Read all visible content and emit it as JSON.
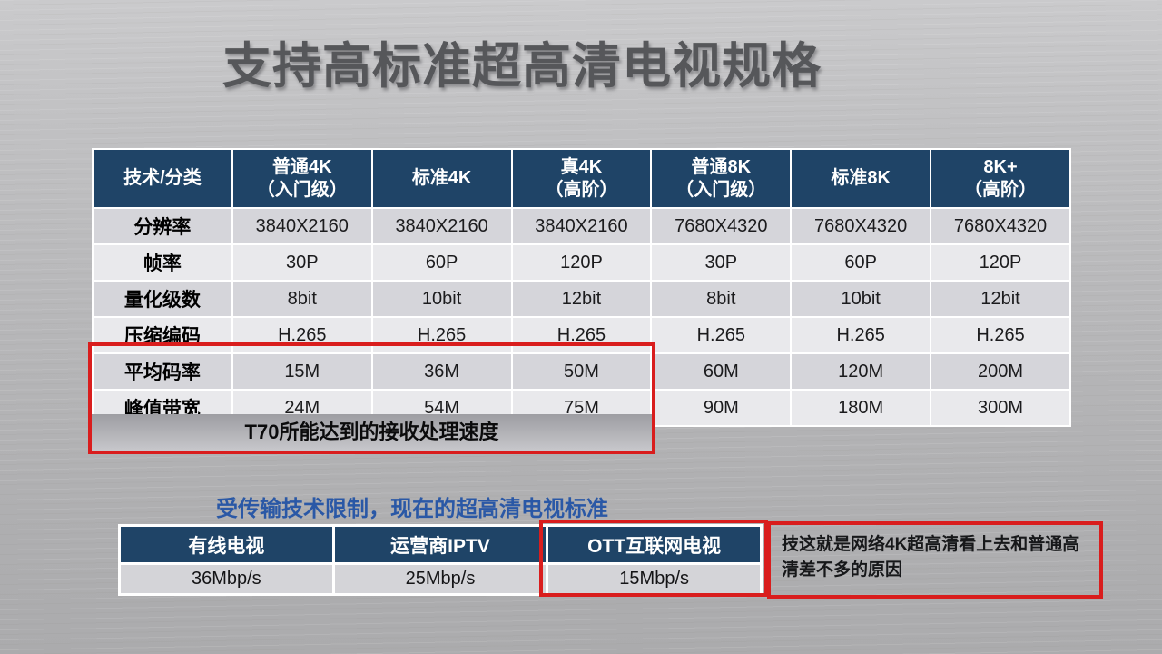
{
  "slide": {
    "title": "支持高标准超高清电视规格",
    "subtitle": "受传输技术限制，现在的超高清电视标准",
    "annotation": "技这就是网络4K超高清看上去和普通高清差不多的原因"
  },
  "colors": {
    "header_navy": "#1F4467",
    "band_dark": "#D5D5DA",
    "band_light": "#E9E9EC",
    "highlight_red": "#D91D1D",
    "subtitle_blue": "#2A58A6",
    "title_gray": "#56575A"
  },
  "spec_table": {
    "columns": [
      "技术/分类",
      "普通4K\n（入门级）",
      "标准4K",
      "真4K\n（高阶）",
      "普通8K\n（入门级）",
      "标准8K",
      "8K+\n（高阶）"
    ],
    "rows": [
      {
        "label": "分辨率",
        "values": [
          "3840X2160",
          "3840X2160",
          "3840X2160",
          "7680X4320",
          "7680X4320",
          "7680X4320"
        ]
      },
      {
        "label": "帧率",
        "values": [
          "30P",
          "60P",
          "120P",
          "30P",
          "60P",
          "120P"
        ]
      },
      {
        "label": "量化级数",
        "values": [
          "8bit",
          "10bit",
          "12bit",
          "8bit",
          "10bit",
          "12bit"
        ]
      },
      {
        "label": "压缩编码",
        "values": [
          "H.265",
          "H.265",
          "H.265",
          "H.265",
          "H.265",
          "H.265"
        ]
      },
      {
        "label": "平均码率",
        "values": [
          "15M",
          "36M",
          "50M",
          "60M",
          "120M",
          "200M"
        ]
      },
      {
        "label": "峰值带宽",
        "values": [
          "24M",
          "54M",
          "75M",
          "90M",
          "180M",
          "300M"
        ]
      }
    ],
    "footer_note": "T70所能达到的接收处理速度"
  },
  "bandwidth_table": {
    "columns": [
      "有线电视",
      "运营商IPTV",
      "OTT互联网电视"
    ],
    "values": [
      "36Mbp/s",
      "25Mbp/s",
      "15Mbp/s"
    ]
  }
}
